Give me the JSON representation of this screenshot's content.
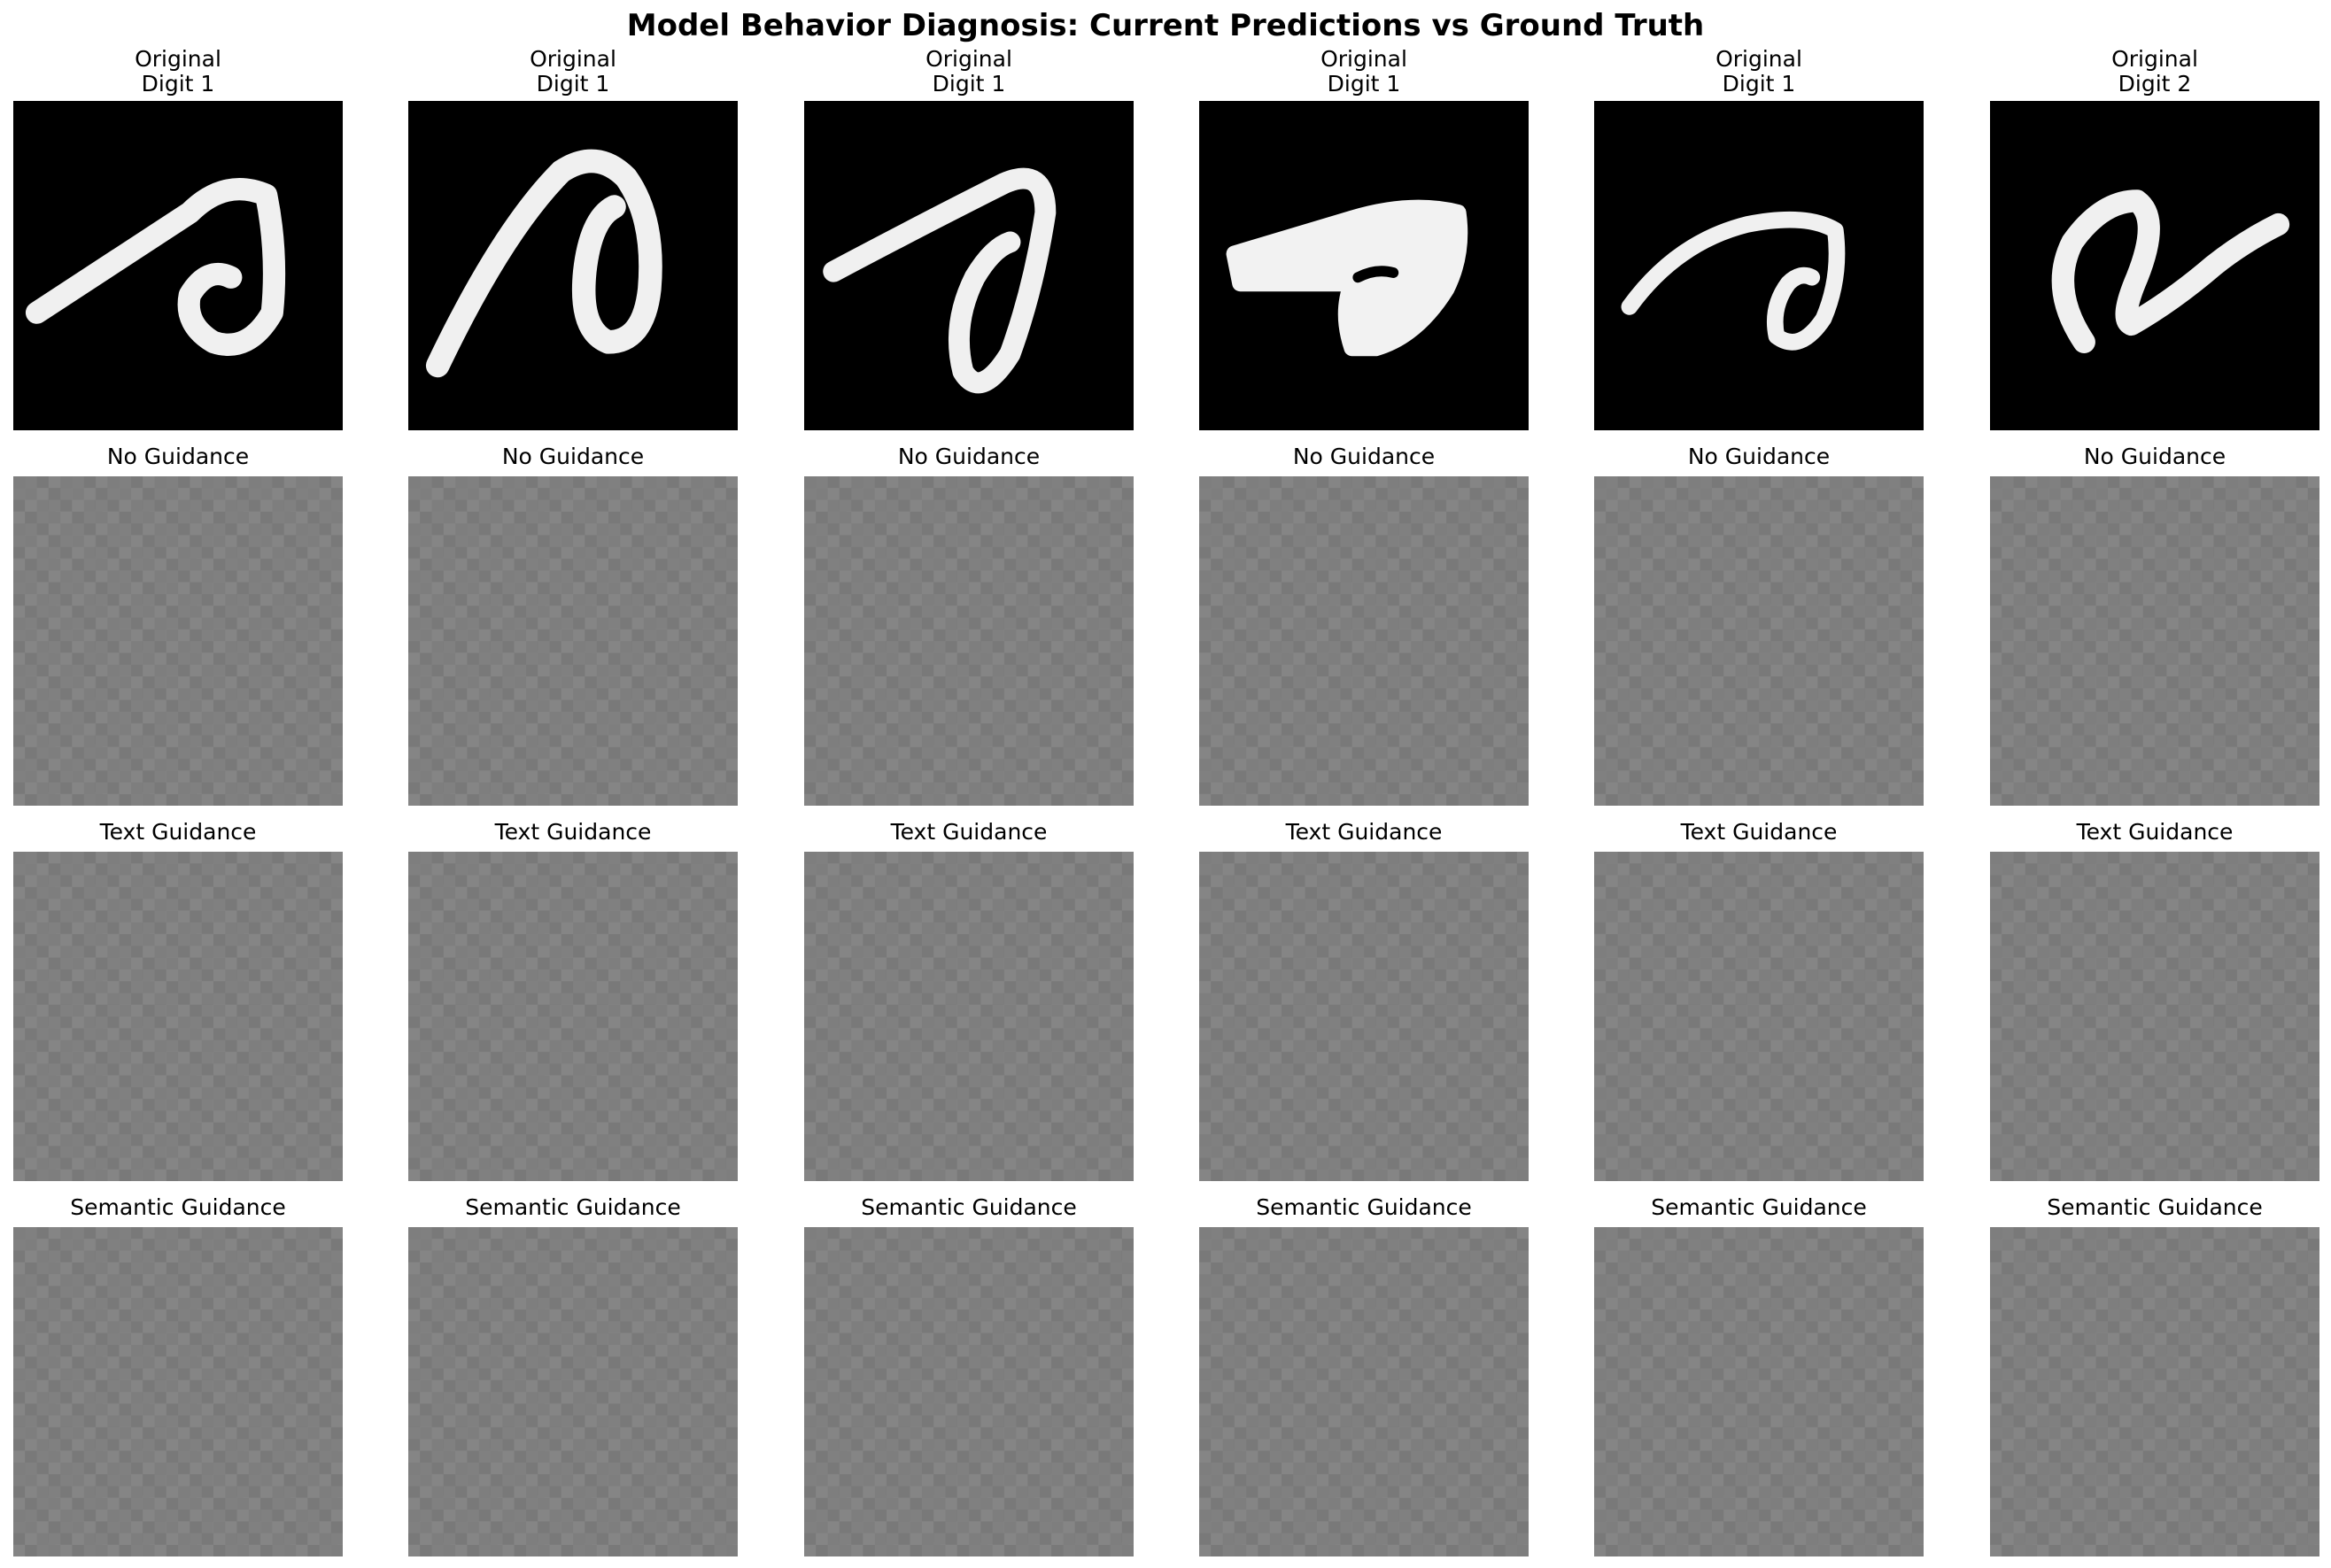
{
  "figure": {
    "title": "Model Behavior Diagnosis: Current Predictions vs Ground Truth"
  },
  "rows": [
    {
      "kind": "original",
      "titles": [
        "Original\nDigit 1",
        "Original\nDigit 1",
        "Original\nDigit 1",
        "Original\nDigit 1",
        "Original\nDigit 1",
        "Original\nDigit 2"
      ]
    },
    {
      "kind": "generated",
      "titles": [
        "No Guidance",
        "No Guidance",
        "No Guidance",
        "No Guidance",
        "No Guidance",
        "No Guidance"
      ]
    },
    {
      "kind": "generated",
      "titles": [
        "Text Guidance",
        "Text Guidance",
        "Text Guidance",
        "Text Guidance",
        "Text Guidance",
        "Text Guidance"
      ]
    },
    {
      "kind": "generated",
      "titles": [
        "Semantic Guidance",
        "Semantic Guidance",
        "Semantic Guidance",
        "Semantic Guidance",
        "Semantic Guidance",
        "Semantic Guidance"
      ]
    }
  ],
  "colors": {
    "digit_background": "#000000",
    "digit_stroke": "#f0f0f0",
    "generated_gray": "#808080"
  }
}
